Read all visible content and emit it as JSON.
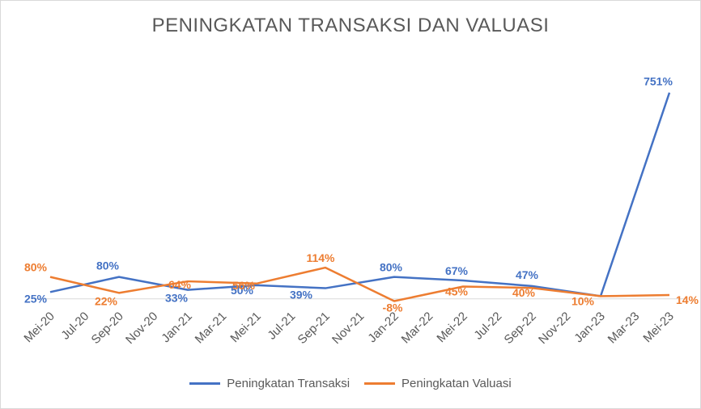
{
  "chart_data": {
    "type": "line",
    "title": "PENINGKATAN TRANSAKSI DAN VALUASI",
    "xlabel": "",
    "ylabel": "",
    "categories": [
      "Mei-20",
      "Jul-20",
      "Sep-20",
      "Nov-20",
      "Jan-21",
      "Mar-21",
      "Mei-21",
      "Jul-21",
      "Sep-21",
      "Nov-21",
      "Jan-22",
      "Mar-22",
      "Mei-22",
      "Jul-22",
      "Sep-22",
      "Nov-22",
      "Jan-23",
      "Mar-23",
      "Mei-23"
    ],
    "ylim": [
      -30,
      800
    ],
    "grid": false,
    "legend_position": "bottom",
    "series": [
      {
        "name": "Peningkatan Transaksi",
        "color": "#4472c4",
        "points": [
          {
            "x": "Mei-20",
            "y": 25,
            "label": "25%"
          },
          {
            "x": "Sep-20",
            "y": 80,
            "label": "80%"
          },
          {
            "x": "Jan-21",
            "y": 33,
            "label": "33%"
          },
          {
            "x": "Mei-21",
            "y": 50,
            "label": "50%"
          },
          {
            "x": "Sep-21",
            "y": 39,
            "label": "39%"
          },
          {
            "x": "Jan-22",
            "y": 80,
            "label": "80%"
          },
          {
            "x": "Mei-22",
            "y": 67,
            "label": "67%"
          },
          {
            "x": "Sep-22",
            "y": 47,
            "label": "47%"
          },
          {
            "x": "Jan-23",
            "y": 10,
            "label": ""
          },
          {
            "x": "Mei-23",
            "y": 751,
            "label": "751%"
          }
        ]
      },
      {
        "name": "Peningkatan Valuasi",
        "color": "#ed7d31",
        "points": [
          {
            "x": "Mei-20",
            "y": 80,
            "label": "80%"
          },
          {
            "x": "Sep-20",
            "y": 22,
            "label": "22%"
          },
          {
            "x": "Jan-21",
            "y": 64,
            "label": "64%"
          },
          {
            "x": "Mei-21",
            "y": 56,
            "label": "56%"
          },
          {
            "x": "Sep-21",
            "y": 114,
            "label": "114%"
          },
          {
            "x": "Jan-22",
            "y": -8,
            "label": "-8%"
          },
          {
            "x": "Mei-22",
            "y": 45,
            "label": "45%"
          },
          {
            "x": "Sep-22",
            "y": 40,
            "label": "40%"
          },
          {
            "x": "Jan-23",
            "y": 10,
            "label": "10%"
          },
          {
            "x": "Mei-23",
            "y": 14,
            "label": "14%"
          }
        ]
      }
    ]
  }
}
